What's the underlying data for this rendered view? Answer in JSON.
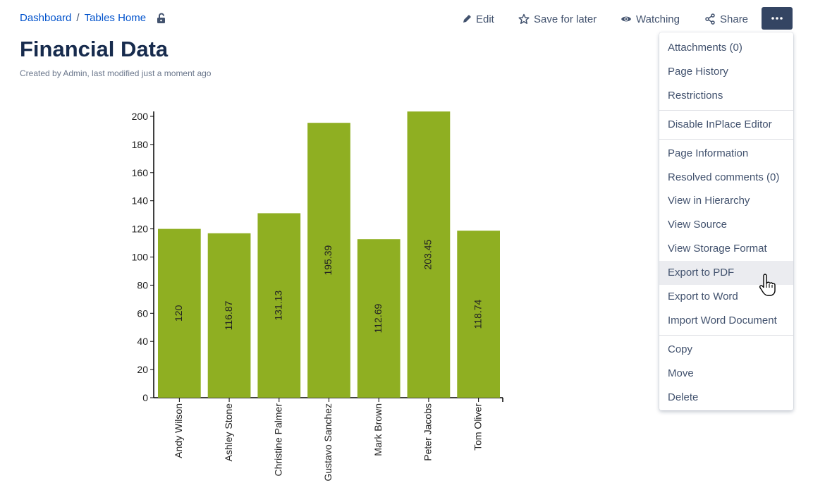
{
  "breadcrumb": {
    "items": [
      "Dashboard",
      "Tables Home"
    ],
    "separator": "/"
  },
  "page": {
    "title": "Financial Data",
    "byline": "Created by Admin, last modified just a moment ago"
  },
  "toolbar": {
    "edit": "Edit",
    "save_for_later": "Save for later",
    "watching": "Watching",
    "share": "Share",
    "more": "•••"
  },
  "menu": {
    "groups": [
      [
        "Attachments (0)",
        "Page History",
        "Restrictions"
      ],
      [
        "Disable InPlace Editor"
      ],
      [
        "Page Information",
        "Resolved comments (0)",
        "View in Hierarchy",
        "View Source",
        "View Storage Format",
        "Export to PDF",
        "Export to Word",
        "Import Word Document"
      ],
      [
        "Copy",
        "Move",
        "Delete"
      ]
    ],
    "hovered": "Export to PDF"
  },
  "colors": {
    "bar": "#8faf22",
    "link": "#0052cc",
    "more_button": "#344563"
  },
  "chart_data": {
    "type": "bar",
    "categories": [
      "Andy Wilson",
      "Ashley Stone",
      "Christine Palmer",
      "Gustavo Sanchez",
      "Mark Brown",
      "Peter Jacobs",
      "Tom Oliver"
    ],
    "values": [
      120,
      116.87,
      131.13,
      195.39,
      112.69,
      203.45,
      118.74
    ],
    "value_labels": [
      "120",
      "116.87",
      "131.13",
      "195.39",
      "112.69",
      "203.45",
      "118.74"
    ],
    "ylim": [
      0,
      200
    ],
    "yticks": [
      0,
      20,
      40,
      60,
      80,
      100,
      120,
      140,
      160,
      180,
      200
    ],
    "title": "",
    "xlabel": "",
    "ylabel": "",
    "grid": false,
    "legend": "none"
  }
}
